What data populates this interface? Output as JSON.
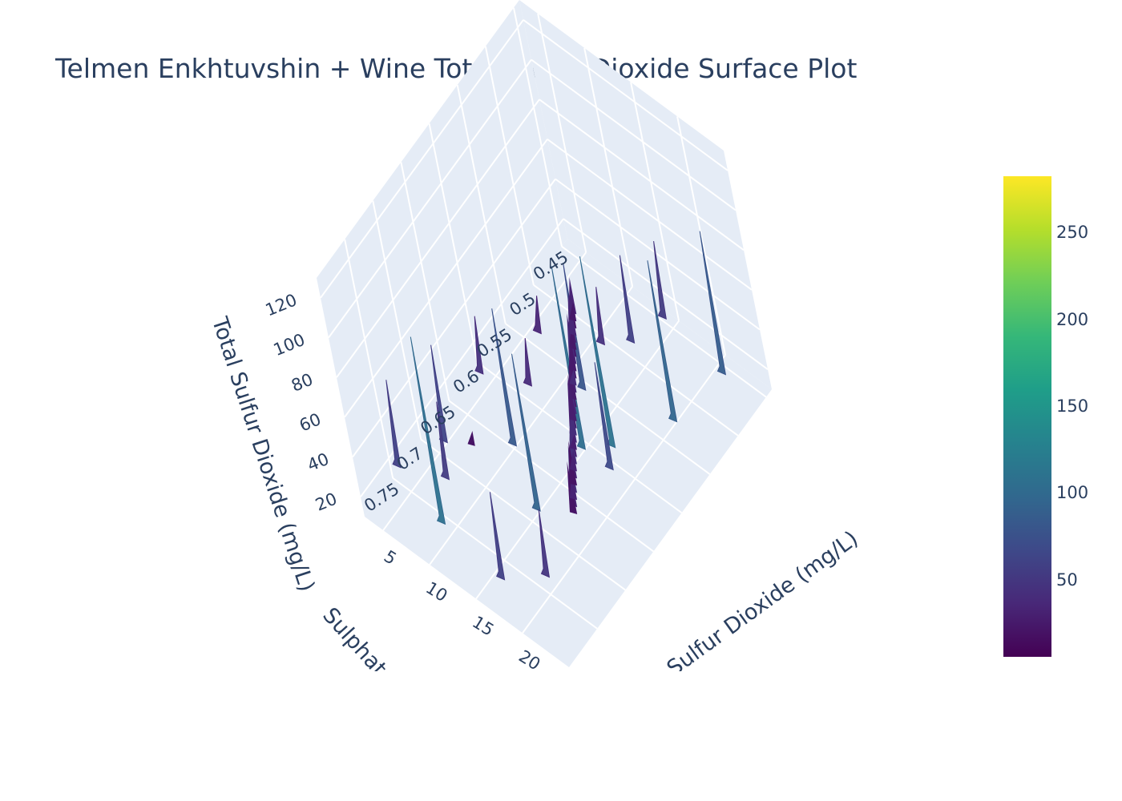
{
  "chart_data": {
    "type": "surface",
    "title": "Telmen Enkhtuvshin + Wine Total Sulfur Dioxide Surface Plot",
    "xlabel": "Free Sulfur Dioxide (mg/L)",
    "ylabel": "Sulphates (g/L)",
    "zlabel": "Total Sulfur Dioxide (mg/L)",
    "x_ticks": [
      "5",
      "10",
      "15",
      "20"
    ],
    "y_ticks": [
      "0.45",
      "0.5",
      "0.55",
      "0.6",
      "0.65",
      "0.7",
      "0.75"
    ],
    "z_ticks": [
      "20",
      "40",
      "60",
      "80",
      "100",
      "120"
    ],
    "xlim": [
      3,
      25
    ],
    "ylim": [
      0.44,
      0.8
    ],
    "zlim": [
      10,
      130
    ],
    "colorscale": "Viridis",
    "colorbar": {
      "ticks": [
        "50",
        "100",
        "150",
        "200",
        "250"
      ],
      "range": [
        6,
        283
      ],
      "colors": [
        "#440154",
        "#482878",
        "#3e4989",
        "#31688e",
        "#26828e",
        "#1f9e89",
        "#35b779",
        "#6ece58",
        "#b5de2b",
        "#fde725"
      ]
    },
    "peaks": [
      {
        "x": 22,
        "y": 0.47,
        "z": 88
      },
      {
        "x": 21,
        "y": 0.54,
        "z": 97
      },
      {
        "x": 18,
        "y": 0.6,
        "z": 112
      },
      {
        "x": 16,
        "y": 0.62,
        "z": 108
      },
      {
        "x": 16,
        "y": 0.7,
        "z": 95
      },
      {
        "x": 13,
        "y": 0.57,
        "z": 80
      },
      {
        "x": 10,
        "y": 0.77,
        "z": 110
      },
      {
        "x": 11,
        "y": 0.66,
        "z": 85
      },
      {
        "x": 14,
        "y": 0.5,
        "z": 60
      },
      {
        "x": 8,
        "y": 0.73,
        "z": 55
      },
      {
        "x": 6,
        "y": 0.7,
        "z": 65
      },
      {
        "x": 4,
        "y": 0.75,
        "z": 60
      },
      {
        "x": 20,
        "y": 0.75,
        "z": 50
      },
      {
        "x": 19,
        "y": 0.62,
        "z": 70
      },
      {
        "x": 12,
        "y": 0.52,
        "z": 45
      },
      {
        "x": 9,
        "y": 0.6,
        "z": 40
      },
      {
        "x": 15,
        "y": 0.46,
        "z": 55
      },
      {
        "x": 7,
        "y": 0.55,
        "z": 35
      },
      {
        "x": 17,
        "y": 0.78,
        "z": 60
      },
      {
        "x": 5,
        "y": 0.62,
        "z": 45
      }
    ]
  }
}
